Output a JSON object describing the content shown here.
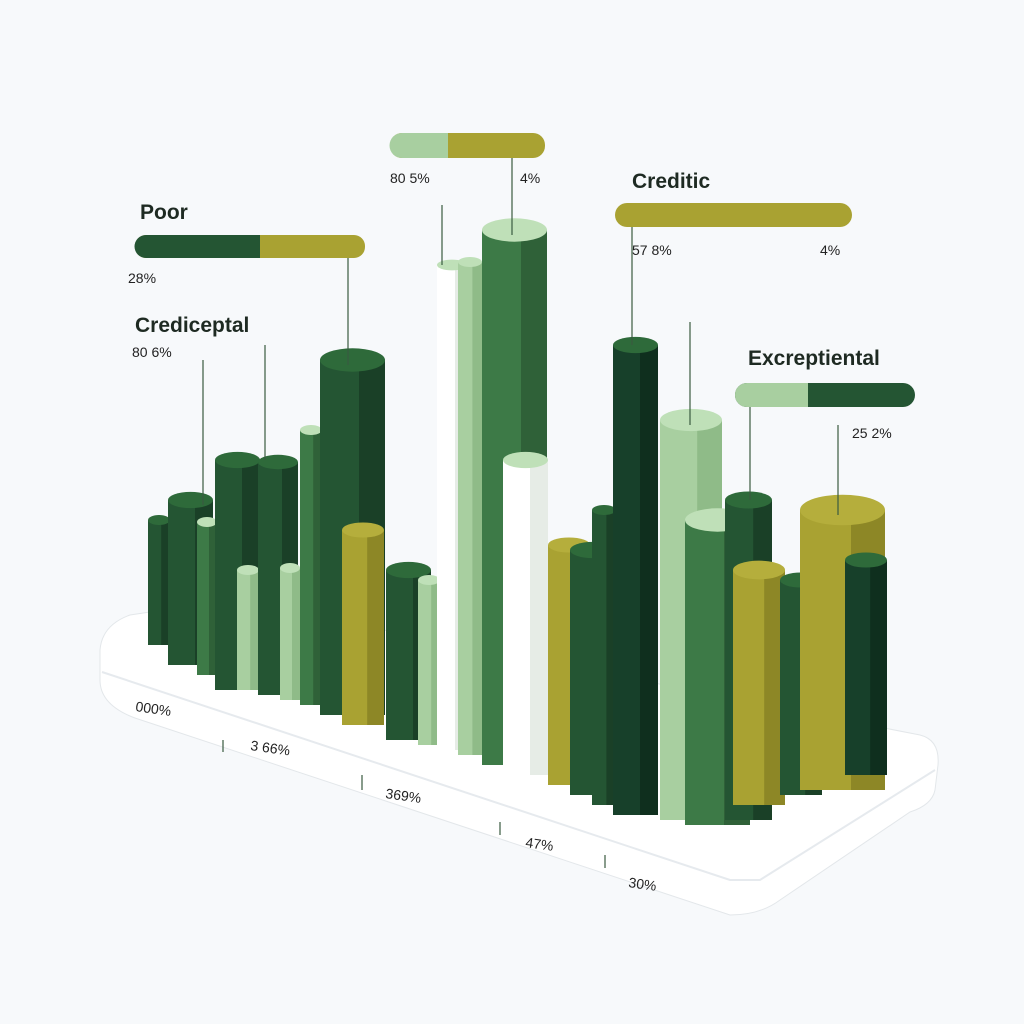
{
  "callouts": [
    {
      "title": "Poor",
      "values": [
        "28%"
      ]
    },
    {
      "title": "Crediceptal",
      "values": [
        "80 6%"
      ]
    },
    {
      "values": [
        "80 5%",
        "4%"
      ]
    },
    {
      "title": "Creditic",
      "values": [
        "57 8%",
        "4%"
      ]
    },
    {
      "title": "Excreptiental",
      "values": [
        "25 2%"
      ]
    }
  ],
  "base_labels": [
    "000%",
    "3 66%",
    "369%",
    "47%",
    "30%"
  ]
}
